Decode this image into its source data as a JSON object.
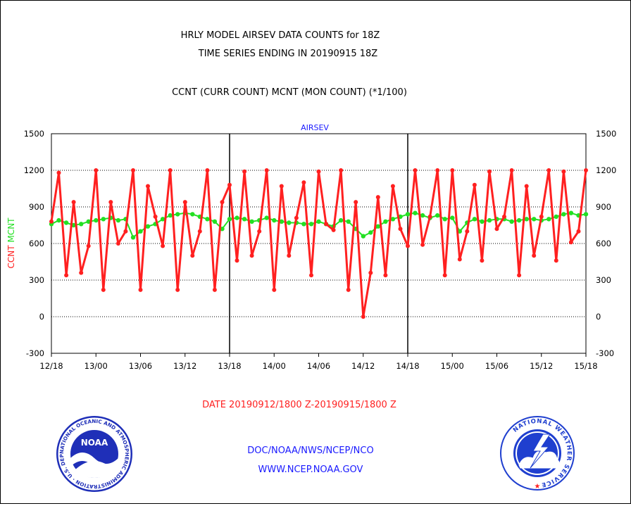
{
  "header": {
    "title_line1": "HRLY MODEL AIRSEV DATA COUNTS for 18Z",
    "title_line2": "TIME SERIES ENDING IN 20190915 18Z",
    "subtitle": "CCNT (CURR COUNT) MCNT (MON COUNT) (*1/100)"
  },
  "footer": {
    "date_range": "DATE 20190912/1800 Z-20190915/1800 Z",
    "org": "DOC/NOAA/NWS/NCEP/NCO",
    "url": "WWW.NCEP.NOAA.GOV"
  },
  "logos": {
    "noaa": {
      "label": "NOAA",
      "ring_text": "NATIONAL OCEANIC AND ATMOSPHERIC ADMINISTRATION · U.S. DEPARTMENT OF COMMERCE"
    },
    "nws": {
      "ring_text": "NATIONAL WEATHER SERVICE"
    }
  },
  "colors": {
    "ccnt": "#ff2020",
    "mcnt": "#22e022",
    "axis_label_blue": "#1a1aff",
    "footer_red": "#ff2020",
    "footer_blue": "#1a1aff",
    "noaa_blue": "#1f2fb8",
    "nws_blue": "#1f3fcf"
  },
  "chart_data": {
    "type": "line",
    "title": "AIRSEV",
    "ylabel_left": "CCNT",
    "ylabel_left2": "MCNT",
    "ylim": [
      -300,
      1500
    ],
    "yticks": [
      -300,
      0,
      300,
      600,
      900,
      1200,
      1500
    ],
    "grid": "dotted-horizontal",
    "x_ticks": [
      "12/18",
      "13/00",
      "13/06",
      "13/12",
      "13/18",
      "14/00",
      "14/06",
      "14/12",
      "14/18",
      "15/00",
      "15/06",
      "15/12",
      "15/18"
    ],
    "x_range_hours": [
      0,
      72
    ],
    "day_separators": [
      "13/18",
      "14/18"
    ],
    "series": [
      {
        "name": "CCNT",
        "color": "#ff2020",
        "values": [
          780,
          1180,
          340,
          940,
          360,
          580,
          1200,
          220,
          940,
          600,
          700,
          1200,
          220,
          1070,
          820,
          580,
          1200,
          220,
          940,
          500,
          700,
          1200,
          220,
          940,
          1080,
          460,
          1190,
          500,
          700,
          1200,
          220,
          1070,
          500,
          810,
          1100,
          340,
          1190,
          760,
          710,
          1200,
          220,
          940,
          0,
          360,
          980,
          340,
          1070,
          720,
          580,
          1200,
          590,
          820,
          1200,
          340,
          1200,
          470,
          700,
          1080,
          460,
          1190,
          720,
          820,
          1200,
          340,
          1070,
          500,
          820,
          1200,
          460,
          1190,
          610,
          700,
          1200
        ]
      },
      {
        "name": "MCNT",
        "color": "#22e022",
        "values": [
          760,
          790,
          770,
          750,
          760,
          780,
          790,
          800,
          810,
          790,
          800,
          650,
          700,
          740,
          760,
          800,
          830,
          840,
          850,
          840,
          820,
          800,
          780,
          720,
          800,
          810,
          800,
          780,
          790,
          810,
          790,
          780,
          770,
          770,
          760,
          760,
          780,
          760,
          740,
          790,
          780,
          720,
          660,
          690,
          740,
          780,
          800,
          820,
          840,
          850,
          830,
          810,
          830,
          800,
          810,
          700,
          770,
          800,
          780,
          790,
          800,
          800,
          780,
          790,
          800,
          800,
          790,
          800,
          820,
          840,
          850,
          830,
          840
        ]
      }
    ]
  }
}
